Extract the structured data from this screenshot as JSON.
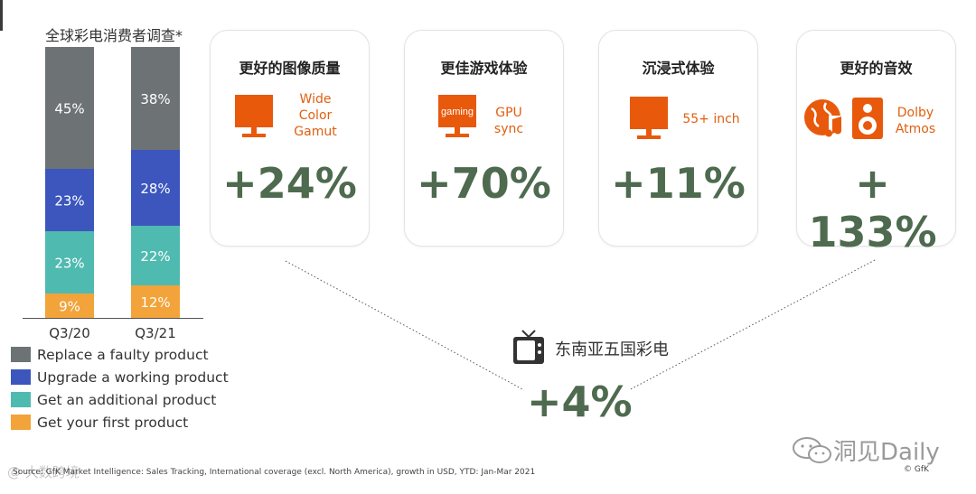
{
  "chart_data": {
    "type": "bar",
    "stacked": true,
    "title": "全球彩电消费者调查*",
    "categories": [
      "Q3/20",
      "Q3/21"
    ],
    "series": [
      {
        "name": "Replace a faulty product",
        "color": "#6d7375",
        "values": [
          45,
          38
        ],
        "labels": [
          "45%",
          "38%"
        ]
      },
      {
        "name": "Upgrade a working product",
        "color": "#3c56be",
        "values": [
          23,
          28
        ],
        "labels": [
          "23%",
          "28%"
        ]
      },
      {
        "name": "Get an additional product",
        "color": "#4fbab0",
        "values": [
          23,
          22
        ],
        "labels": [
          "23%",
          "22%"
        ]
      },
      {
        "name": "Get your first product",
        "color": "#f2a33a",
        "values": [
          9,
          12
        ],
        "labels": [
          "9%",
          "12%"
        ]
      }
    ],
    "ylim": [
      0,
      100
    ],
    "legend": "bottom-left"
  },
  "cards": [
    {
      "title": "更好的图像质量",
      "note": [
        "Wide",
        "Color",
        "Gamut"
      ],
      "value": "+24%",
      "icon": "monitor-icon"
    },
    {
      "title": "更佳游戏体验",
      "note": [
        "GPU",
        "sync"
      ],
      "value": "+70%",
      "icon": "gaming-monitor-icon",
      "icon_text": "gaming"
    },
    {
      "title": "沉浸式体验",
      "note": [
        "55+ inch"
      ],
      "value": "+11%",
      "icon": "monitor-icon"
    },
    {
      "title": "更好的音效",
      "note": [
        "Dolby",
        "Atmos"
      ],
      "value": "+ 133%",
      "icon": "music-speaker-icon"
    }
  ],
  "summary": {
    "label": "东南亚五国彩电",
    "value": "+4%",
    "icon": "tv-icon"
  },
  "footer": {
    "source": "Source: GfK Market Intelligence: Sales Tracking, International coverage (excl. North America), growth in USD, YTD: Jan-Mar 2021",
    "copyright": "© GfK",
    "watermark": "洞见Daily",
    "watermark_left": "@ 大数跨境"
  },
  "colors": {
    "accent_orange": "#e8590c",
    "value_green": "#4e6a4f"
  }
}
